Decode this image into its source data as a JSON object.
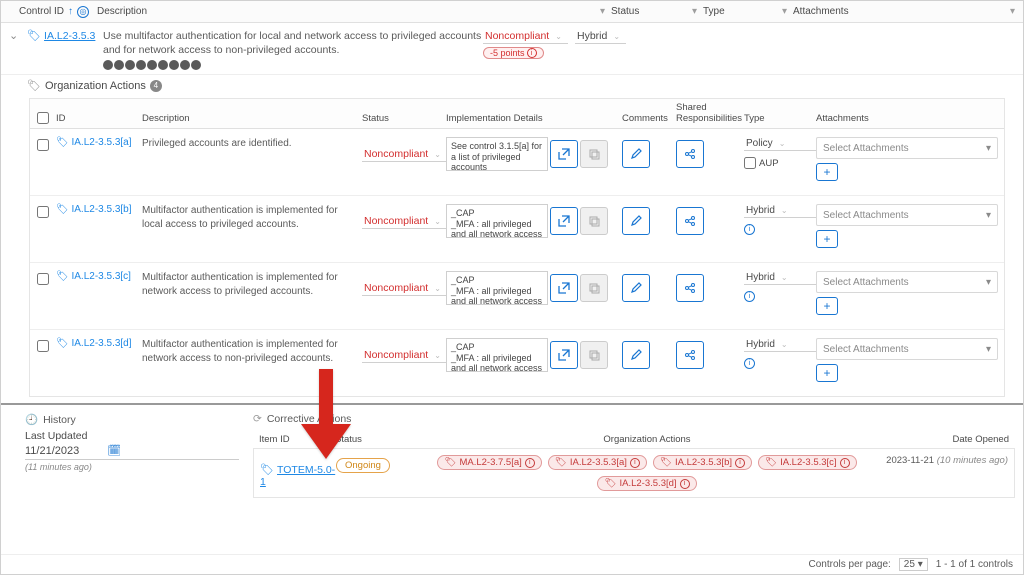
{
  "colors": {
    "link": "#1e88e5",
    "danger": "#d32f2f",
    "border": "#e0e0e0",
    "accent": "#1976d2",
    "arrow": "#d6261d"
  },
  "header": {
    "control_id": "Control ID",
    "description": "Description",
    "status": "Status",
    "type": "Type",
    "attachments": "Attachments"
  },
  "control": {
    "id": "IA.L2-3.5.3",
    "description": "Use multifactor authentication for local and network access to privileged accounts and for network access to non-privileged accounts.",
    "status": "Noncompliant",
    "points_label": "-5 points",
    "type": "Hybrid",
    "dot_count": 9
  },
  "org_actions_label": "Organization Actions",
  "org_actions_count": "4",
  "inner_header": {
    "id": "ID",
    "description": "Description",
    "status": "Status",
    "impl": "Implementation Details",
    "comments": "Comments",
    "shared": "Shared Responsibilities",
    "type": "Type",
    "attachments": "Attachments"
  },
  "rows": [
    {
      "id": "IA.L2-3.5.3[a]",
      "description": "Privileged accounts are identified.",
      "status": "Noncompliant",
      "impl": "See control 3.1.5[a] for a list of privileged accounts",
      "type": "Policy",
      "show_aup": true,
      "aup_label": "AUP",
      "attachments": "Select Attachments"
    },
    {
      "id": "IA.L2-3.5.3[b]",
      "description": "Multifactor authentication is implemented for local access to privileged accounts.",
      "status": "Noncompliant",
      "impl": "_CAP\n_MFA : all privileged and all network access",
      "type": "Hybrid",
      "show_aup": false,
      "attachments": "Select Attachments"
    },
    {
      "id": "IA.L2-3.5.3[c]",
      "description": "Multifactor authentication is implemented for network access to privileged accounts.",
      "status": "Noncompliant",
      "impl": "_CAP\n_MFA : all privileged and all network access",
      "type": "Hybrid",
      "show_aup": false,
      "attachments": "Select Attachments"
    },
    {
      "id": "IA.L2-3.5.3[d]",
      "description": "Multifactor authentication is implemented for network access to non-privileged accounts.",
      "status": "Noncompliant",
      "impl": "_CAP\n_MFA : all privileged and all network access",
      "type": "Hybrid",
      "show_aup": false,
      "attachments": "Select Attachments"
    }
  ],
  "history": {
    "title": "History",
    "last_updated_label": "Last Updated",
    "last_updated_date": "11/21/2023",
    "ago": "(11 minutes ago)"
  },
  "corrective": {
    "title": "Corrective Actions",
    "header": {
      "item": "Item ID",
      "status": "Status",
      "oa": "Organization Actions",
      "opened": "Date Opened"
    },
    "item_id": "TOTEM-5.0-1",
    "status": "Ongoing",
    "pills": [
      "MA.L2-3.7.5[a]",
      "IA.L2-3.5.3[a]",
      "IA.L2-3.5.3[b]",
      "IA.L2-3.5.3[c]",
      "IA.L2-3.5.3[d]"
    ],
    "opened_date": "2023-11-21",
    "opened_ago": "(10 minutes ago)"
  },
  "footer": {
    "cpp_label": "Controls per page:",
    "cpp_value": "25",
    "range": "1 - 1 of 1 controls"
  }
}
